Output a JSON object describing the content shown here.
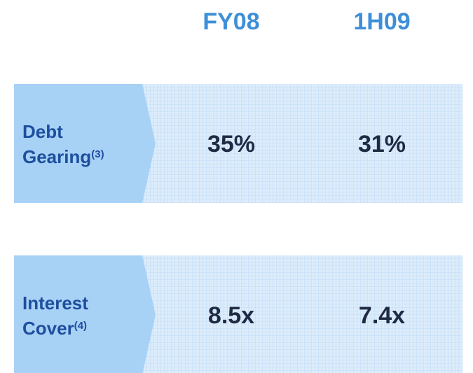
{
  "columns": [
    "FY08",
    "1H09"
  ],
  "rows": [
    {
      "label": [
        "Debt",
        "Gearing"
      ],
      "note": "(3)",
      "values": [
        "35%",
        "31%"
      ]
    },
    {
      "label": [
        "Interest",
        "Cover"
      ],
      "note": "(4)",
      "values": [
        "8.5x",
        "7.4x"
      ]
    }
  ]
}
